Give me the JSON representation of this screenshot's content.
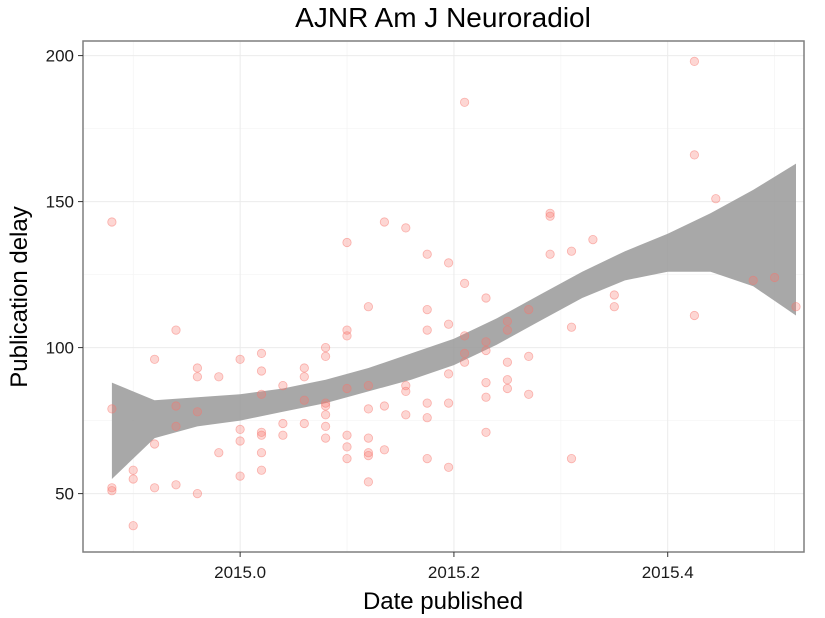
{
  "chart_data": {
    "type": "scatter",
    "title": "AJNR Am J Neuroradiol",
    "xlabel": "Date published",
    "ylabel": "Publication delay",
    "xlim": [
      2014.853,
      2015.5275
    ],
    "ylim": [
      30,
      205
    ],
    "x_ticks": [
      2015.0,
      2015.2,
      2015.4
    ],
    "x_tick_labels": [
      "2015.0",
      "2015.2",
      "2015.4"
    ],
    "y_ticks": [
      50,
      100,
      150,
      200
    ],
    "y_tick_labels": [
      "50",
      "100",
      "150",
      "200"
    ],
    "grid": true,
    "legend": "none",
    "colors": {
      "point": "#f8766d",
      "ribbon": "#999999",
      "panel_border": "#7f7f7f",
      "grid_major": "#ebebeb",
      "grid_minor": "#f5f5f5"
    },
    "series": [
      {
        "points": [
          [
            2014.88,
            143
          ],
          [
            2014.88,
            79
          ],
          [
            2014.88,
            52
          ],
          [
            2014.88,
            51
          ],
          [
            2014.9,
            58
          ],
          [
            2014.9,
            55
          ],
          [
            2014.9,
            39
          ],
          [
            2014.92,
            96
          ],
          [
            2014.92,
            67
          ],
          [
            2014.92,
            52
          ],
          [
            2014.94,
            106
          ],
          [
            2014.94,
            80
          ],
          [
            2014.94,
            73
          ],
          [
            2014.94,
            53
          ],
          [
            2014.96,
            93
          ],
          [
            2014.96,
            90
          ],
          [
            2014.96,
            78
          ],
          [
            2014.96,
            50
          ],
          [
            2014.98,
            90
          ],
          [
            2014.98,
            64
          ],
          [
            2015.0,
            96
          ],
          [
            2015.0,
            72
          ],
          [
            2015.0,
            68
          ],
          [
            2015.0,
            56
          ],
          [
            2015.02,
            98
          ],
          [
            2015.02,
            92
          ],
          [
            2015.02,
            84
          ],
          [
            2015.02,
            71
          ],
          [
            2015.02,
            70
          ],
          [
            2015.02,
            64
          ],
          [
            2015.02,
            58
          ],
          [
            2015.04,
            87
          ],
          [
            2015.04,
            74
          ],
          [
            2015.04,
            70
          ],
          [
            2015.06,
            93
          ],
          [
            2015.06,
            90
          ],
          [
            2015.06,
            82
          ],
          [
            2015.06,
            74
          ],
          [
            2015.08,
            100
          ],
          [
            2015.08,
            97
          ],
          [
            2015.08,
            81
          ],
          [
            2015.08,
            80
          ],
          [
            2015.08,
            77
          ],
          [
            2015.08,
            73
          ],
          [
            2015.08,
            69
          ],
          [
            2015.1,
            136
          ],
          [
            2015.1,
            106
          ],
          [
            2015.1,
            104
          ],
          [
            2015.1,
            86
          ],
          [
            2015.1,
            70
          ],
          [
            2015.1,
            66
          ],
          [
            2015.1,
            62
          ],
          [
            2015.12,
            114
          ],
          [
            2015.12,
            87
          ],
          [
            2015.12,
            79
          ],
          [
            2015.12,
            69
          ],
          [
            2015.12,
            64
          ],
          [
            2015.12,
            63
          ],
          [
            2015.12,
            54
          ],
          [
            2015.135,
            143
          ],
          [
            2015.135,
            80
          ],
          [
            2015.135,
            65
          ],
          [
            2015.155,
            141
          ],
          [
            2015.155,
            87
          ],
          [
            2015.155,
            85
          ],
          [
            2015.155,
            77
          ],
          [
            2015.175,
            132
          ],
          [
            2015.175,
            113
          ],
          [
            2015.175,
            106
          ],
          [
            2015.175,
            81
          ],
          [
            2015.175,
            76
          ],
          [
            2015.175,
            62
          ],
          [
            2015.195,
            129
          ],
          [
            2015.195,
            108
          ],
          [
            2015.195,
            91
          ],
          [
            2015.195,
            81
          ],
          [
            2015.195,
            59
          ],
          [
            2015.21,
            184
          ],
          [
            2015.21,
            122
          ],
          [
            2015.21,
            104
          ],
          [
            2015.21,
            98
          ],
          [
            2015.21,
            95
          ],
          [
            2015.23,
            117
          ],
          [
            2015.23,
            102
          ],
          [
            2015.23,
            99
          ],
          [
            2015.23,
            88
          ],
          [
            2015.23,
            83
          ],
          [
            2015.23,
            71
          ],
          [
            2015.25,
            109
          ],
          [
            2015.25,
            106
          ],
          [
            2015.25,
            95
          ],
          [
            2015.25,
            89
          ],
          [
            2015.25,
            86
          ],
          [
            2015.27,
            113
          ],
          [
            2015.27,
            97
          ],
          [
            2015.27,
            84
          ],
          [
            2015.29,
            146
          ],
          [
            2015.29,
            145
          ],
          [
            2015.29,
            132
          ],
          [
            2015.31,
            133
          ],
          [
            2015.31,
            107
          ],
          [
            2015.31,
            62
          ],
          [
            2015.33,
            137
          ],
          [
            2015.35,
            118
          ],
          [
            2015.35,
            114
          ],
          [
            2015.425,
            198
          ],
          [
            2015.425,
            166
          ],
          [
            2015.425,
            111
          ],
          [
            2015.445,
            151
          ],
          [
            2015.48,
            123
          ],
          [
            2015.5,
            124
          ],
          [
            2015.52,
            114
          ]
        ]
      }
    ],
    "smooth_ribbon": {
      "x": [
        2014.88,
        2014.92,
        2014.96,
        2015.0,
        2015.04,
        2015.08,
        2015.12,
        2015.16,
        2015.2,
        2015.24,
        2015.28,
        2015.32,
        2015.36,
        2015.4,
        2015.44,
        2015.48,
        2015.52
      ],
      "upper": [
        88,
        82,
        83,
        84,
        86,
        89,
        93,
        98,
        103,
        110,
        118,
        126,
        133,
        139,
        146,
        154,
        163
      ],
      "lower": [
        55,
        69,
        73,
        75,
        78,
        81,
        85,
        89,
        94,
        101,
        109,
        117,
        123,
        126,
        126,
        121,
        111
      ]
    }
  }
}
